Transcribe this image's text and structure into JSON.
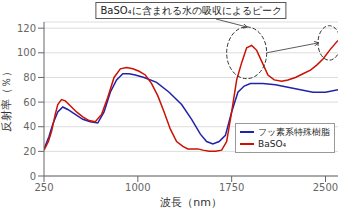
{
  "chart_data": {
    "type": "line",
    "title": "BaSO₄に含まれる水の吸収によるピーク",
    "x_label": "波長（nm）",
    "y_label": "反射率（％）",
    "xlim": [
      250,
      2600
    ],
    "ylim": [
      0,
      125
    ],
    "xticks": [
      250,
      1000,
      1750,
      2500
    ],
    "yticks": [
      0,
      20,
      40,
      60,
      80,
      100,
      120
    ],
    "grid": true,
    "legend": "lower right",
    "series": [
      {
        "name": "フッ素系特殊樹脂",
        "color": "#2222aa",
        "x": [
          250,
          290,
          320,
          360,
          400,
          440,
          500,
          560,
          620,
          680,
          730,
          780,
          830,
          880,
          930,
          980,
          1050,
          1150,
          1250,
          1350,
          1430,
          1500,
          1550,
          1600,
          1650,
          1700,
          1750,
          1800,
          1850,
          1900,
          1950,
          2000,
          2100,
          2200,
          2300,
          2400,
          2500,
          2600
        ],
        "values": [
          22,
          32,
          42,
          52,
          56,
          54,
          50,
          46,
          44,
          43,
          52,
          68,
          78,
          83,
          83,
          82,
          80,
          76,
          68,
          58,
          46,
          34,
          28,
          26,
          28,
          33,
          52,
          68,
          73,
          75,
          75,
          75,
          74,
          72,
          70,
          68,
          68,
          70
        ]
      },
      {
        "name": "BaSO₄",
        "color": "#cc1100",
        "x": [
          250,
          285,
          310,
          340,
          360,
          390,
          420,
          460,
          510,
          560,
          610,
          660,
          710,
          760,
          810,
          860,
          910,
          960,
          1010,
          1060,
          1110,
          1160,
          1210,
          1260,
          1310,
          1360,
          1400,
          1440,
          1480,
          1520,
          1570,
          1620,
          1670,
          1710,
          1750,
          1790,
          1830,
          1870,
          1910,
          1950,
          1990,
          2040,
          2090,
          2150,
          2200,
          2260,
          2320,
          2380,
          2430,
          2480,
          2540,
          2600
        ],
        "values": [
          21,
          28,
          36,
          50,
          58,
          62,
          61,
          57,
          52,
          48,
          45,
          44,
          50,
          64,
          80,
          87,
          88,
          87,
          85,
          82,
          75,
          65,
          52,
          38,
          28,
          24,
          22,
          22,
          22,
          21,
          20,
          20,
          21,
          28,
          52,
          78,
          92,
          104,
          106,
          102,
          93,
          82,
          78,
          77,
          78,
          80,
          83,
          86,
          90,
          95,
          103,
          110
        ]
      }
    ],
    "ellipses": [
      {
        "x": 1870,
        "y": 100,
        "width": 320,
        "height": 42
      },
      {
        "x": 2530,
        "y": 108,
        "width": 180,
        "height": 28
      }
    ]
  }
}
